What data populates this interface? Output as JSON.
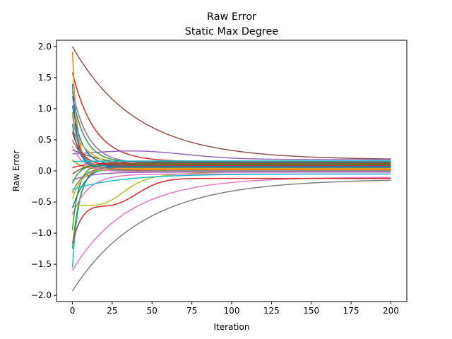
{
  "chart_data": {
    "type": "line",
    "title": "Raw Error",
    "subtitle": "Static Max Degree",
    "xlabel": "Iteration",
    "ylabel": "Raw Error",
    "xlim": [
      -10,
      210
    ],
    "ylim": [
      -2.1,
      2.1
    ],
    "xticks": [
      0,
      25,
      50,
      75,
      100,
      125,
      150,
      175,
      200
    ],
    "yticks": [
      -2.0,
      -1.5,
      -1.0,
      -0.5,
      0.0,
      0.5,
      1.0,
      1.5,
      2.0
    ],
    "xticklabels": [
      "0",
      "25",
      "50",
      "75",
      "100",
      "125",
      "150",
      "175",
      "200"
    ],
    "yticklabels": [
      "−2.0",
      "−1.5",
      "−1.0",
      "−0.5",
      "0.0",
      "0.5",
      "1.0",
      "1.5",
      "2.0"
    ],
    "grid": false,
    "legend": "none",
    "x_range": [
      0,
      200
    ],
    "colors": [
      "#1f77b4",
      "#ff7f0e",
      "#2ca02c",
      "#d62728",
      "#9467bd",
      "#8c564b",
      "#e377c2",
      "#7f7f7f",
      "#bcbd22",
      "#17becf"
    ],
    "series": [
      {
        "color": "#8c564b",
        "start": 2.0,
        "end": 0.18,
        "tau": 40
      },
      {
        "color": "#7f7f7f",
        "start": -1.93,
        "end": -0.13,
        "tau": 45
      },
      {
        "color": "#e377c2",
        "start": -1.6,
        "end": -0.1,
        "tau": 35
      },
      {
        "color": "#d62728",
        "start": 1.58,
        "end": 0.15,
        "tau": 14
      },
      {
        "color": "#ff7f0e",
        "start": 1.92,
        "end": 0.05,
        "tau": 3
      },
      {
        "color": "#17becf",
        "start": -1.55,
        "end": 0.02,
        "tau": 4
      },
      {
        "color": "#2ca02c",
        "start": -1.25,
        "end": 0.08,
        "tau": 5
      },
      {
        "color": "#d62728",
        "start": -1.05,
        "end": -0.12,
        "tau": 8,
        "dip": -0.55,
        "dip_t": 25
      },
      {
        "color": "#bcbd22",
        "start": -0.5,
        "end": 0.0,
        "tau": 30,
        "dip": -0.52,
        "dip_t": 20
      },
      {
        "color": "#9467bd",
        "start": 0.22,
        "end": 0.18,
        "tau": 60,
        "bump": 0.32,
        "bump_t": 40
      },
      {
        "color": "#8c564b",
        "start": 0.34,
        "end": 0.05,
        "tau": 25
      },
      {
        "color": "#1f77b4",
        "start": 1.05,
        "end": 0.1,
        "tau": 6
      },
      {
        "color": "#9467bd",
        "start": 1.28,
        "end": 0.12,
        "tau": 10
      },
      {
        "color": "#2ca02c",
        "start": 1.2,
        "end": 0.14,
        "tau": 8
      },
      {
        "color": "#bcbd22",
        "start": 0.65,
        "end": 0.06,
        "tau": 12
      },
      {
        "color": "#17becf",
        "start": 0.9,
        "end": 0.0,
        "tau": 5
      },
      {
        "color": "#e377c2",
        "start": -0.7,
        "end": -0.05,
        "tau": 10
      },
      {
        "color": "#1f77b4",
        "start": -0.6,
        "end": 0.13,
        "tau": 9
      },
      {
        "color": "#ff7f0e",
        "start": 0.18,
        "end": 0.02,
        "tau": 6
      },
      {
        "color": "#7f7f7f",
        "start": -0.35,
        "end": 0.07,
        "tau": 7
      },
      {
        "color": "#d62728",
        "start": 0.05,
        "end": 0.12,
        "tau": 8
      },
      {
        "color": "#2ca02c",
        "start": -0.95,
        "end": 0.1,
        "tau": 4
      },
      {
        "color": "#9467bd",
        "start": -0.15,
        "end": -0.02,
        "tau": 12
      },
      {
        "color": "#bcbd22",
        "start": -0.45,
        "end": 0.04,
        "tau": 6
      },
      {
        "color": "#17becf",
        "start": -0.3,
        "end": -0.05,
        "tau": 30
      },
      {
        "color": "#1f77b4",
        "start": 0.75,
        "end": 0.08,
        "tau": 4
      },
      {
        "color": "#8c564b",
        "start": -0.05,
        "end": 0.15,
        "tau": 10
      },
      {
        "color": "#e377c2",
        "start": 0.4,
        "end": -0.01,
        "tau": 7
      },
      {
        "color": "#ff7f0e",
        "start": 0.95,
        "end": 0.03,
        "tau": 5
      },
      {
        "color": "#2ca02c",
        "start": -0.2,
        "end": 0.11,
        "tau": 5
      },
      {
        "color": "#d62728",
        "start": 0.62,
        "end": 0.09,
        "tau": 6
      },
      {
        "color": "#1f77b4",
        "start": 1.4,
        "end": 0.06,
        "tau": 3
      },
      {
        "color": "#7f7f7f",
        "start": 0.5,
        "end": 0.0,
        "tau": 9
      },
      {
        "color": "#17becf",
        "start": 0.15,
        "end": 0.16,
        "tau": 15
      }
    ]
  }
}
